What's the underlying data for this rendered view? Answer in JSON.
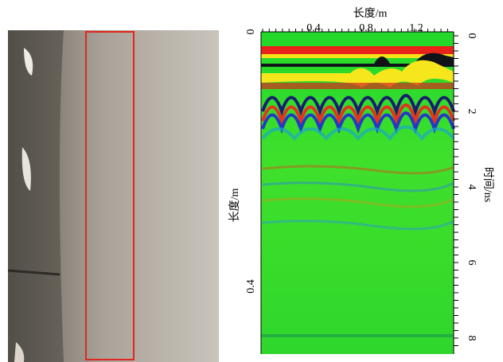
{
  "figure": {
    "top_axis": {
      "label": "长度/m",
      "ticks": [
        "0.4",
        "0.8",
        "1.2"
      ]
    },
    "left_axis": {
      "label": "长度/m",
      "ticks": [
        "0",
        "0.4"
      ]
    },
    "right_axis": {
      "label": "时间/ns",
      "ticks": [
        "0",
        "2",
        "4",
        "6",
        "8"
      ]
    }
  }
}
